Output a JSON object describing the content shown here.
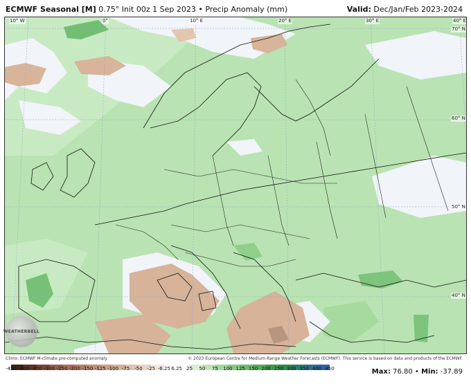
{
  "header": {
    "title_bold": "ECMWF Seasonal [M]",
    "title_rest": "0.75° Init 00z 1 Sep 2023 • Precip Anomaly (mm)",
    "valid_label": "Valid:",
    "valid_value": "Dec/Jan/Feb 2023-2024"
  },
  "map": {
    "lon_labels": [
      "10° W",
      "0°",
      "10° E",
      "20° E",
      "30° E",
      "40° E"
    ],
    "lat_labels": [
      "70° N",
      "60° N",
      "50° N",
      "40° N"
    ],
    "logo_text": "WEATHERBELL",
    "colors": {
      "ocean_neutral": "#c9e9c3",
      "light_green": "#b5e0ad",
      "mid_green": "#8fd18a",
      "dark_green": "#63b86a",
      "white_area": "#f2f5fa",
      "tan": "#d8b59a",
      "brown": "#b9977e",
      "borders": "#111111"
    }
  },
  "footer": {
    "climo": "Climo: ECMWF M-climate pre-computed anomaly",
    "copyright": "© 2023 European Centre for Medium-Range Weather Forecasts (ECMWF). This service is based on data and products of the ECMWF."
  },
  "colorbar": {
    "labels": [
      "-450",
      "-400",
      "-350",
      "-300",
      "-250",
      "-200",
      "-150",
      "-125",
      "-100",
      "-75",
      "-50",
      "-25",
      "-6.25",
      "6.25",
      "25",
      "50",
      "75",
      "100",
      "125",
      "150",
      "200",
      "250",
      "300",
      "350",
      "400",
      "450"
    ],
    "colors": [
      "#3b2416",
      "#5a3522",
      "#7a4a33",
      "#93604a",
      "#a96f58",
      "#b57f66",
      "#c38f77",
      "#cd9f88",
      "#d7b19b",
      "#e0c3ad",
      "#e9d5c4",
      "#f2e6db",
      "#ffffff",
      "#ffffff",
      "#d9efd4",
      "#bfe4b7",
      "#a3d89b",
      "#86cb80",
      "#6bbd69",
      "#52ad58",
      "#3d9a4a",
      "#2e8a48",
      "#2b7a6a",
      "#2d6e8a",
      "#3161a0"
    ]
  },
  "stats": {
    "max_label": "Max:",
    "max_value": "76.80",
    "sep": "•",
    "min_label": "Min:",
    "min_value": "-37.89"
  }
}
